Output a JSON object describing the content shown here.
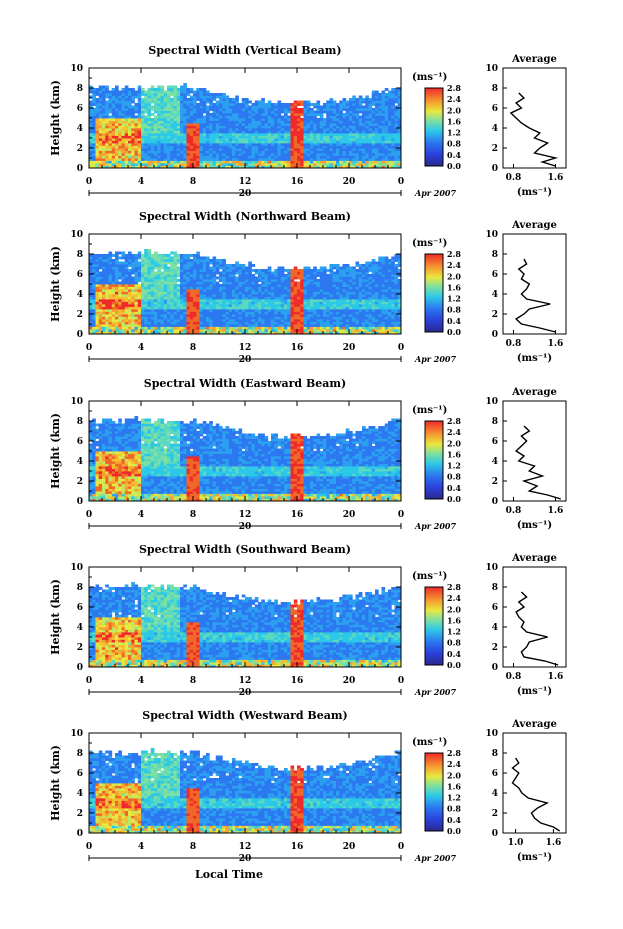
{
  "figure": {
    "colorbar_unit": "(ms⁻¹)",
    "date_label": "Apr 2007",
    "date_tick": "20",
    "avg_title": "Average",
    "avg_xlabel": "(ms⁻¹)",
    "xlabel_bottom": "Local Time"
  },
  "chart_data": [
    {
      "type": "heatmap",
      "title": "Spectral Width (Vertical Beam)",
      "ylabel": "Height (km)",
      "xticks": [
        "0",
        "4",
        "8",
        "12",
        "16",
        "20",
        "0"
      ],
      "yticks": [
        "0",
        "2",
        "4",
        "6",
        "8",
        "10"
      ],
      "xlim": [
        0,
        24
      ],
      "ylim": [
        0,
        10
      ],
      "colorbar_ticks": [
        "0.0",
        "0.4",
        "0.8",
        "1.2",
        "1.6",
        "2.0",
        "2.4",
        "2.8"
      ],
      "colorbar_range": [
        0,
        2.8
      ],
      "average_profile": {
        "title": "Average",
        "xticks": [
          "0.8",
          "1.6"
        ],
        "yticks": [
          "0",
          "2",
          "4",
          "6",
          "8",
          "10"
        ],
        "xlim": [
          0.6,
          1.8
        ],
        "height_km": [
          0.2,
          0.6,
          1.0,
          1.5,
          2.0,
          2.5,
          3.0,
          3.5,
          4.0,
          4.5,
          5.0,
          5.5,
          6.0,
          6.5,
          7.0,
          7.5
        ],
        "values": [
          1.6,
          1.35,
          1.6,
          1.2,
          1.3,
          1.45,
          1.2,
          1.3,
          1.1,
          0.95,
          0.85,
          0.75,
          0.95,
          0.85,
          1.0,
          0.9
        ]
      }
    },
    {
      "type": "heatmap",
      "title": "Spectral Width (Northward Beam)",
      "ylabel": "Height (km)",
      "xticks": [
        "0",
        "4",
        "8",
        "12",
        "16",
        "20",
        "0"
      ],
      "yticks": [
        "0",
        "2",
        "4",
        "6",
        "8",
        "10"
      ],
      "xlim": [
        0,
        24
      ],
      "ylim": [
        0,
        10
      ],
      "colorbar_ticks": [
        "0.0",
        "0.4",
        "0.8",
        "1.2",
        "1.6",
        "2.0",
        "2.4",
        "2.8"
      ],
      "colorbar_range": [
        0,
        2.8
      ],
      "average_profile": {
        "title": "Average",
        "xticks": [
          "0.8",
          "1.6"
        ],
        "yticks": [
          "0",
          "2",
          "4",
          "6",
          "8",
          "10"
        ],
        "xlim": [
          0.6,
          1.8
        ],
        "height_km": [
          0.2,
          0.6,
          1.0,
          1.5,
          2.0,
          2.5,
          3.0,
          3.5,
          4.0,
          4.5,
          5.0,
          5.5,
          6.0,
          6.5,
          7.0,
          7.5
        ],
        "values": [
          1.6,
          1.3,
          0.95,
          0.85,
          1.0,
          1.1,
          1.5,
          1.05,
          0.95,
          1.05,
          1.1,
          0.95,
          1.0,
          0.9,
          1.05,
          1.0
        ]
      }
    },
    {
      "type": "heatmap",
      "title": "Spectral Width (Eastward Beam)",
      "ylabel": "Height (km)",
      "xticks": [
        "0",
        "4",
        "8",
        "12",
        "16",
        "20",
        "0"
      ],
      "yticks": [
        "0",
        "2",
        "4",
        "6",
        "8",
        "10"
      ],
      "xlim": [
        0,
        24
      ],
      "ylim": [
        0,
        10
      ],
      "colorbar_ticks": [
        "0.0",
        "0.4",
        "0.8",
        "1.2",
        "1.6",
        "2.0",
        "2.4",
        "2.8"
      ],
      "colorbar_range": [
        0,
        2.8
      ],
      "average_profile": {
        "title": "Average",
        "xticks": [
          "0.8",
          "1.6"
        ],
        "yticks": [
          "0",
          "2",
          "4",
          "6",
          "8",
          "10"
        ],
        "xlim": [
          0.6,
          1.8
        ],
        "height_km": [
          0.2,
          0.6,
          1.0,
          1.5,
          2.0,
          2.5,
          3.0,
          3.5,
          4.0,
          4.5,
          5.0,
          5.5,
          6.0,
          6.5,
          7.0,
          7.5
        ],
        "values": [
          1.7,
          1.45,
          1.1,
          1.25,
          1.0,
          1.35,
          1.1,
          1.2,
          0.9,
          1.0,
          0.85,
          0.95,
          1.05,
          0.95,
          1.1,
          1.0
        ]
      }
    },
    {
      "type": "heatmap",
      "title": "Spectral Width (Southward Beam)",
      "ylabel": "Height (km)",
      "xticks": [
        "0",
        "4",
        "8",
        "12",
        "16",
        "20",
        "0"
      ],
      "yticks": [
        "0",
        "2",
        "4",
        "6",
        "8",
        "10"
      ],
      "xlim": [
        0,
        24
      ],
      "ylim": [
        0,
        10
      ],
      "colorbar_ticks": [
        "0.0",
        "0.4",
        "0.8",
        "1.2",
        "1.6",
        "2.0",
        "2.4",
        "2.8"
      ],
      "colorbar_range": [
        0,
        2.8
      ],
      "average_profile": {
        "title": "Average",
        "xticks": [
          "0.8",
          "1.6"
        ],
        "yticks": [
          "0",
          "2",
          "4",
          "6",
          "8",
          "10"
        ],
        "xlim": [
          0.6,
          1.8
        ],
        "height_km": [
          0.2,
          0.6,
          1.0,
          1.5,
          2.0,
          2.5,
          3.0,
          3.5,
          4.0,
          4.5,
          5.0,
          5.5,
          6.0,
          6.5,
          7.0,
          7.5
        ],
        "values": [
          1.65,
          1.4,
          1.0,
          0.95,
          1.05,
          1.1,
          1.45,
          1.05,
          0.95,
          1.0,
          0.9,
          0.85,
          1.0,
          0.9,
          1.05,
          0.95
        ]
      }
    },
    {
      "type": "heatmap",
      "title": "Spectral Width (Westward Beam)",
      "ylabel": "Height (km)",
      "xticks": [
        "0",
        "4",
        "8",
        "12",
        "16",
        "20",
        "0"
      ],
      "yticks": [
        "0",
        "2",
        "4",
        "6",
        "8",
        "10"
      ],
      "xlim": [
        0,
        24
      ],
      "ylim": [
        0,
        10
      ],
      "colorbar_ticks": [
        "0.0",
        "0.4",
        "0.8",
        "1.2",
        "1.6",
        "2.0",
        "2.4",
        "2.8"
      ],
      "colorbar_range": [
        0,
        2.8
      ],
      "average_profile": {
        "title": "Average",
        "xticks": [
          "1.0",
          "1.6"
        ],
        "yticks": [
          "0",
          "2",
          "4",
          "6",
          "8",
          "10"
        ],
        "xlim": [
          0.8,
          1.8
        ],
        "height_km": [
          0.2,
          0.6,
          1.0,
          1.5,
          2.0,
          2.5,
          3.0,
          3.5,
          4.0,
          4.5,
          5.0,
          5.5,
          6.0,
          6.5,
          7.0,
          7.5
        ],
        "values": [
          1.7,
          1.6,
          1.4,
          1.3,
          1.25,
          1.35,
          1.5,
          1.2,
          1.1,
          1.05,
          0.95,
          1.0,
          1.05,
          0.95,
          1.05,
          1.0
        ]
      }
    }
  ]
}
